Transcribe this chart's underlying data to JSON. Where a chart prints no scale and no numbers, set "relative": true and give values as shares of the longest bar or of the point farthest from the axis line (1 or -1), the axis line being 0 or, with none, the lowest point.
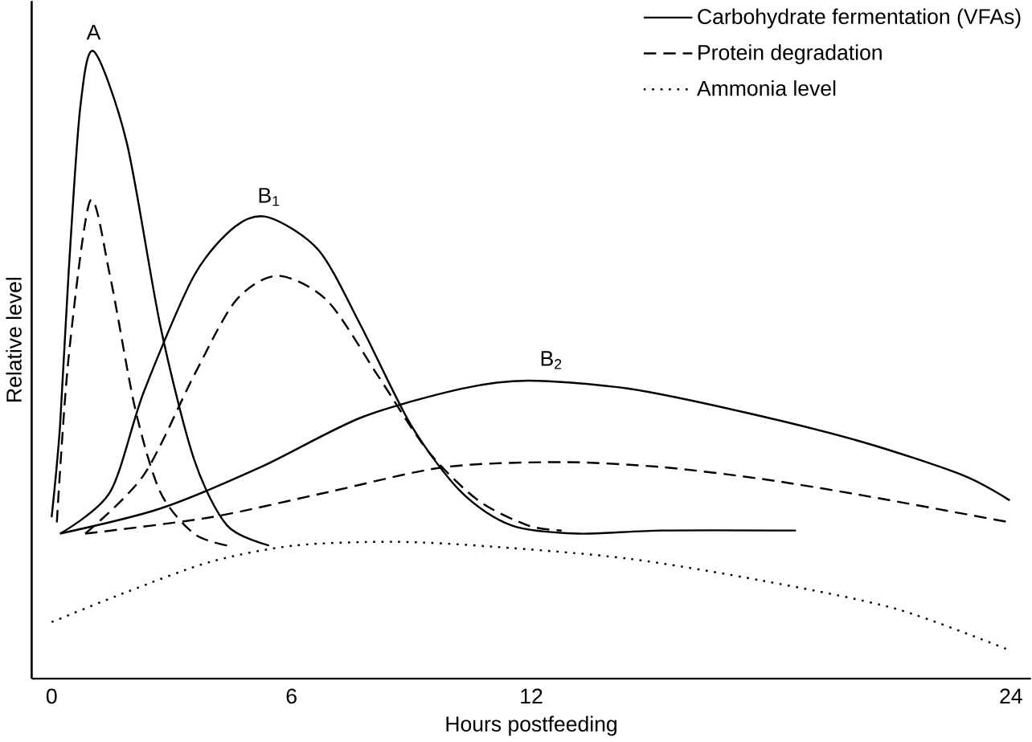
{
  "chart_data": {
    "type": "line",
    "xlabel": "Hours postfeeding",
    "ylabel": "Relative level",
    "relative": true,
    "xlim": [
      -0.5,
      24.5
    ],
    "xticks": [
      0,
      6,
      12,
      24
    ],
    "legend": "top right",
    "grid": false,
    "marker": "none",
    "series": [
      {
        "name": "Carbohydrate fermentation (VFAs)",
        "color": "#000000",
        "line_style": "solid",
        "x": [
          0,
          0.21,
          0.42,
          0.71,
          1.05,
          1.88,
          2.72,
          3.56,
          4.39,
          5.44
        ],
        "values": [
          0.257,
          0.403,
          0.642,
          0.907,
          1.0,
          0.854,
          0.562,
          0.35,
          0.244,
          0.212
        ]
      },
      {
        "name": "Protein degradation",
        "color": "#000000",
        "line_style": "dashed",
        "x": [
          0.13,
          0.42,
          0.96,
          1.46,
          2.09,
          2.72,
          3.56,
          4.39
        ],
        "values": [
          0.249,
          0.509,
          0.761,
          0.642,
          0.43,
          0.297,
          0.231,
          0.212
        ]
      },
      {
        "name": "Ammonia level",
        "color": "#000000",
        "line_style": "dotted",
        "x": [
          0,
          1.88,
          3.97,
          6.07,
          8.58,
          11.09,
          14.44,
          17.78,
          21.13,
          23.97
        ],
        "values": [
          0.09,
          0.138,
          0.186,
          0.212,
          0.218,
          0.21,
          0.191,
          0.156,
          0.111,
          0.045
        ]
      },
      {
        "color": "#000000",
        "line_style": "solid",
        "x": [
          0.21,
          1.46,
          2.3,
          3.56,
          4.6,
          5.44,
          6.69,
          7.74,
          9.0,
          10.25,
          11.51,
          13.18,
          15.27,
          18.62
        ],
        "values": [
          0.231,
          0.297,
          0.456,
          0.642,
          0.721,
          0.735,
          0.682,
          0.562,
          0.403,
          0.297,
          0.244,
          0.231,
          0.236,
          0.236
        ]
      },
      {
        "color": "#000000",
        "line_style": "dashed",
        "x": [
          0.84,
          2.3,
          3.56,
          4.6,
          5.65,
          6.9,
          8.16,
          9.41,
          10.67,
          11.92,
          12.76
        ],
        "values": [
          0.231,
          0.324,
          0.483,
          0.602,
          0.642,
          0.602,
          0.483,
          0.363,
          0.284,
          0.244,
          0.236
        ]
      },
      {
        "color": "#000000",
        "line_style": "solid",
        "x": [
          0.21,
          2.72,
          5.23,
          7.74,
          10.25,
          11.92,
          14.44,
          17.36,
          20.29,
          22.8,
          23.97
        ],
        "values": [
          0.231,
          0.271,
          0.337,
          0.416,
          0.462,
          0.475,
          0.462,
          0.424,
          0.377,
          0.324,
          0.284
        ]
      },
      {
        "color": "#000000",
        "line_style": "dashed",
        "x": [
          0.84,
          3.97,
          6.9,
          9.83,
          12.76,
          15.27,
          17.78,
          20.29,
          23.97
        ],
        "values": [
          0.231,
          0.257,
          0.297,
          0.337,
          0.345,
          0.337,
          0.318,
          0.292,
          0.249
        ]
      }
    ],
    "annotations": [
      {
        "text": "A",
        "x": 1.05,
        "y": 1.0
      },
      {
        "text": "B$_{1}$",
        "x": 5.44,
        "y": 0.735
      },
      {
        "text": "B$_{2}$",
        "x": 12.5,
        "y": 0.475
      }
    ]
  }
}
